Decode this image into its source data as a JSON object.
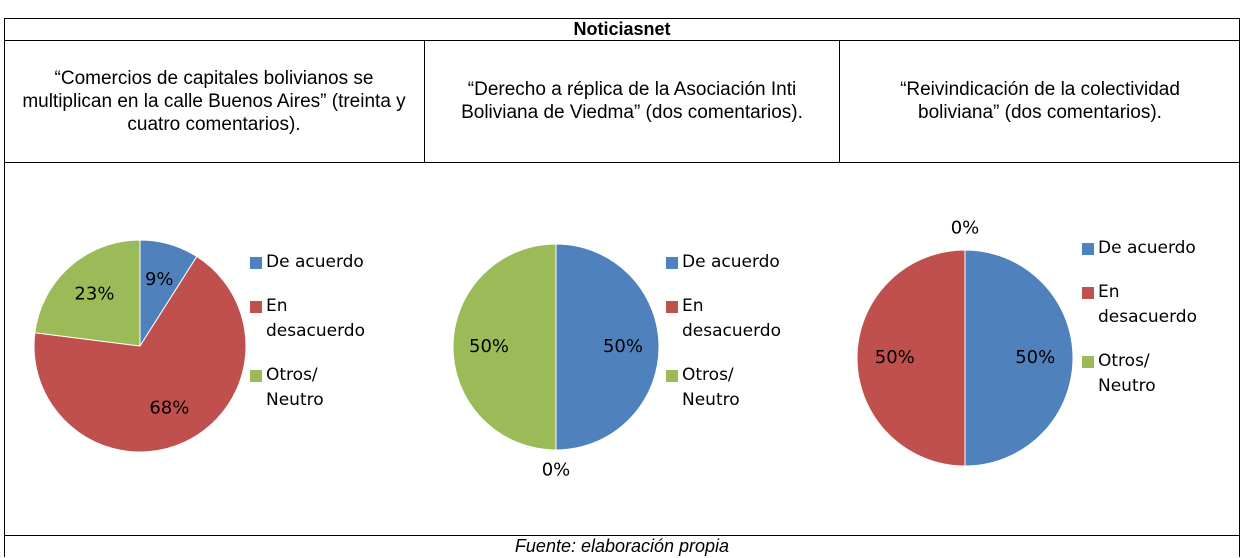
{
  "header": {
    "title": "Noticiasnet"
  },
  "table": {
    "headers": [
      "“Comercios de capitales bolivianos se multiplican en la calle Buenos Aires” (treinta y cuatro comentarios).",
      "“Derecho a réplica de la Asociación Inti Boliviana de Viedma” (dos comentarios).",
      "“Reivindicación de la colectividad boliviana” (dos comentarios)."
    ]
  },
  "charts": [
    {
      "type": "pie",
      "categories": [
        "De acuerdo",
        "En desacuerdo",
        "Otros/ Neutro"
      ],
      "colors": [
        "#4f81bd",
        "#c0504d",
        "#9bbb59"
      ],
      "values": [
        9,
        68,
        23
      ],
      "value_labels": [
        "9%",
        "68%",
        "23%"
      ]
    },
    {
      "type": "pie",
      "categories": [
        "De acuerdo",
        "En desacuerdo",
        "Otros/ Neutro"
      ],
      "colors": [
        "#4f81bd",
        "#c0504d",
        "#9bbb59"
      ],
      "values": [
        50,
        0,
        50
      ],
      "value_labels": [
        "50%",
        "0%",
        "50%"
      ]
    },
    {
      "type": "pie",
      "categories": [
        "De acuerdo",
        "En desacuerdo",
        "Otros/ Neutro"
      ],
      "colors": [
        "#4f81bd",
        "#c0504d",
        "#9bbb59"
      ],
      "values": [
        50,
        50,
        0
      ],
      "value_labels": [
        "50%",
        "50%",
        "0%"
      ]
    }
  ],
  "footer": "Fuente: elaboración propia"
}
